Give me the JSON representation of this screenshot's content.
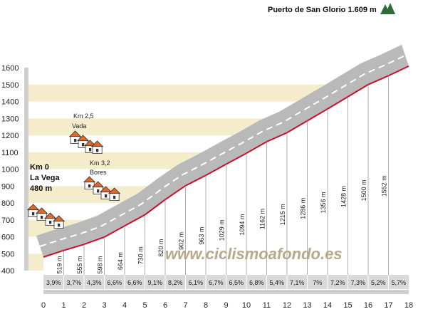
{
  "chart_data": {
    "type": "area",
    "title": "Puerto de San Glorio 1.609 m",
    "start_label": [
      "Km 0",
      "La Vega",
      "480 m"
    ],
    "towns": [
      {
        "km_label": "Km 2,5",
        "name": "Vada",
        "km": 2.5
      },
      {
        "km_label": "Km 3,2",
        "name": "Bores",
        "km": 3.2
      }
    ],
    "watermark": "www.ciclismoafondo.es",
    "x_ticks": [
      "0",
      "1",
      "2",
      "3",
      "4",
      "5",
      "6",
      "7",
      "8",
      "9",
      "10",
      "11",
      "12",
      "13",
      "14",
      "15",
      "16",
      "17",
      "18"
    ],
    "y_ticks": [
      "400",
      "500",
      "600",
      "700",
      "800",
      "900",
      "1000",
      "1100",
      "1200",
      "1300",
      "1400",
      "1500",
      "1600"
    ],
    "ylim": [
      400,
      1600
    ],
    "xlim": [
      0,
      18
    ],
    "start_elevation": 480,
    "summit_elevation": 1609,
    "km_points": [
      1,
      2,
      3,
      4,
      5,
      6,
      7,
      8,
      9,
      10,
      11,
      12,
      13,
      14,
      15,
      16,
      17
    ],
    "elevation_labels": [
      "519 m",
      "555 m",
      "598 m",
      "664 m",
      "730 m",
      "820 m",
      "902 m",
      "963 m",
      "1029 m",
      "1094 m",
      "1162 m",
      "1215 m",
      "1286 m",
      "1356 m",
      "1428 m",
      "1500 m",
      "1552 m"
    ],
    "elevations": [
      519,
      555,
      598,
      664,
      730,
      820,
      902,
      963,
      1029,
      1094,
      1162,
      1215,
      1286,
      1356,
      1428,
      1500,
      1552
    ],
    "gradients": [
      "3,9%",
      "3,7%",
      "4,3%",
      "6,6%",
      "6,6%",
      "9,1%",
      "8,2%",
      "6,1%",
      "6,7%",
      "6,5%",
      "6,8%",
      "5,4%",
      "7,1%",
      "7%",
      "7,2%",
      "7,3%",
      "5,2%",
      "5,7%"
    ],
    "colors": {
      "profile_line": "#c8102e",
      "band": "#b9b9b9",
      "band_dash": "#ffffff",
      "stripe": "#f5eccb",
      "axis_bg": "#cfcfcf",
      "summit_tree": "#2f6b35",
      "roof": "#e0692a"
    }
  }
}
